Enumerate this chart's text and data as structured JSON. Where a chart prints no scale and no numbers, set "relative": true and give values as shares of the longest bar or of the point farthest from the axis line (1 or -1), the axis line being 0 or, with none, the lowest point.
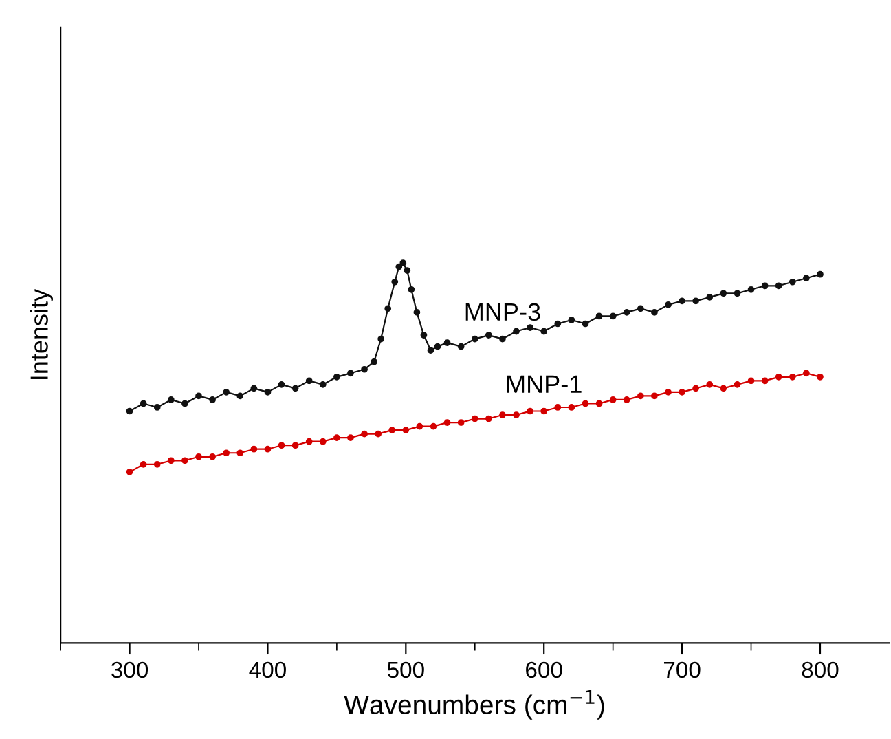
{
  "chart_data": {
    "type": "line",
    "relative": true,
    "xlabel": "Wavenumbers (cm$^{−1}$)",
    "ylabel": "Intensity",
    "xlim": [
      250,
      850
    ],
    "xticks": [
      300,
      400,
      500,
      600,
      700,
      800
    ],
    "grid": false,
    "legend": false,
    "marker": "circle",
    "line_style": "solid",
    "tick_labels": "x",
    "series": [
      {
        "name": "MNP-3",
        "color": "#111111",
        "x": [
          300,
          310,
          320,
          330,
          340,
          350,
          360,
          370,
          380,
          390,
          400,
          410,
          420,
          430,
          440,
          450,
          460,
          470,
          477,
          482,
          487,
          492,
          495,
          498,
          501,
          504,
          508,
          513,
          518,
          523,
          530,
          540,
          550,
          560,
          570,
          580,
          590,
          600,
          610,
          620,
          630,
          640,
          650,
          660,
          670,
          680,
          690,
          700,
          710,
          720,
          730,
          740,
          750,
          760,
          770,
          780,
          790,
          800
        ],
        "values": [
          0.61,
          0.63,
          0.62,
          0.64,
          0.63,
          0.65,
          0.64,
          0.66,
          0.65,
          0.67,
          0.66,
          0.68,
          0.67,
          0.69,
          0.68,
          0.7,
          0.71,
          0.72,
          0.74,
          0.8,
          0.88,
          0.95,
          0.99,
          1.0,
          0.98,
          0.93,
          0.87,
          0.81,
          0.77,
          0.78,
          0.79,
          0.78,
          0.8,
          0.81,
          0.8,
          0.82,
          0.83,
          0.82,
          0.84,
          0.85,
          0.84,
          0.86,
          0.86,
          0.87,
          0.88,
          0.87,
          0.89,
          0.9,
          0.9,
          0.91,
          0.92,
          0.92,
          0.93,
          0.94,
          0.94,
          0.95,
          0.96,
          0.97
        ]
      },
      {
        "name": "MNP-1",
        "color": "#d40000",
        "x": [
          300,
          310,
          320,
          330,
          340,
          350,
          360,
          370,
          380,
          390,
          400,
          410,
          420,
          430,
          440,
          450,
          460,
          470,
          480,
          490,
          500,
          510,
          520,
          530,
          540,
          550,
          560,
          570,
          580,
          590,
          600,
          610,
          620,
          630,
          640,
          650,
          660,
          670,
          680,
          690,
          700,
          710,
          720,
          730,
          740,
          750,
          760,
          770,
          780,
          790,
          800
        ],
        "values": [
          0.45,
          0.47,
          0.47,
          0.48,
          0.48,
          0.49,
          0.49,
          0.5,
          0.5,
          0.51,
          0.51,
          0.52,
          0.52,
          0.53,
          0.53,
          0.54,
          0.54,
          0.55,
          0.55,
          0.56,
          0.56,
          0.57,
          0.57,
          0.58,
          0.58,
          0.59,
          0.59,
          0.6,
          0.6,
          0.61,
          0.61,
          0.62,
          0.62,
          0.63,
          0.63,
          0.64,
          0.64,
          0.65,
          0.65,
          0.66,
          0.66,
          0.67,
          0.68,
          0.67,
          0.68,
          0.69,
          0.69,
          0.7,
          0.7,
          0.71,
          0.7
        ]
      }
    ]
  }
}
